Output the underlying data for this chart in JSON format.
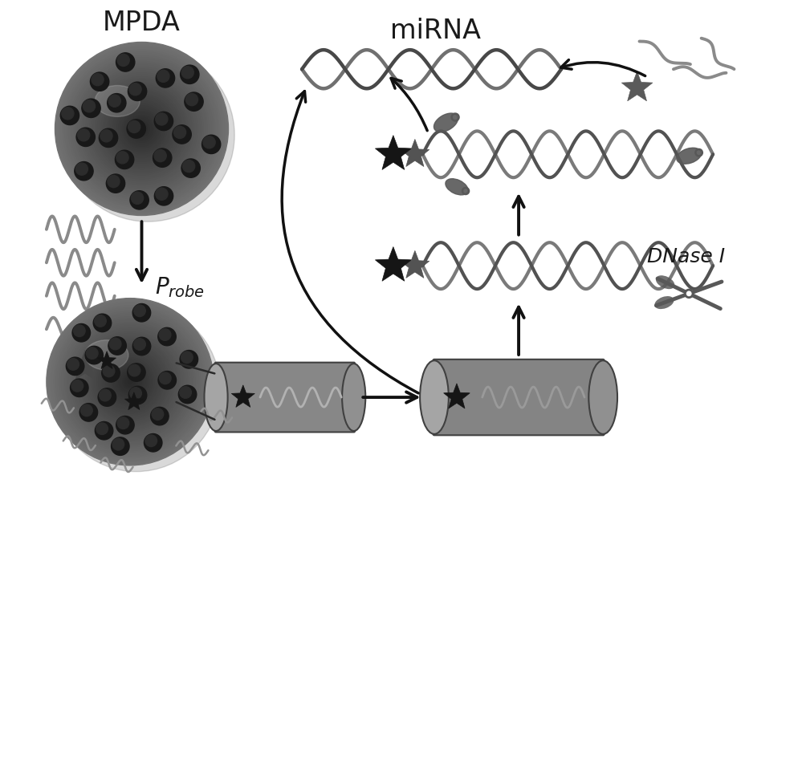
{
  "bg_color": "#ffffff",
  "dark_gray": "#3a3a3a",
  "mid_gray": "#787878",
  "sphere_base": "#636363",
  "sphere_dark": "#1e1e1e",
  "cylinder_color": "#888888",
  "dna_strand1": "#525252",
  "dna_strand2": "#7a7a7a",
  "star_fill": "#151515",
  "star_gray": "#585858",
  "text_color": "#1a1a1a",
  "arrow_color": "#111111",
  "probe_color": "#888888",
  "scissors_color": "#585858",
  "label_mpda": "MPDA",
  "label_mirna": "miRNA",
  "label_probe": "Probe",
  "label_dnase": "DNase I"
}
